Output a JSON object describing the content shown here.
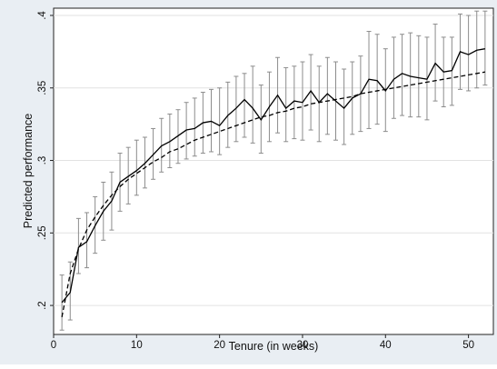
{
  "chart_data": {
    "type": "line",
    "xlabel": "Tenure (in weeks)",
    "ylabel": "Predicted performance",
    "xlim": [
      0,
      53
    ],
    "ylim": [
      0.18,
      0.405
    ],
    "x_ticks": [
      0,
      10,
      20,
      30,
      40,
      50
    ],
    "y_ticks": [
      0.2,
      0.25,
      0.3,
      0.35,
      0.4
    ],
    "x_tick_labels": [
      "0",
      "10",
      "20",
      "30",
      "40",
      "50"
    ],
    "y_tick_labels": [
      ".2",
      ".25",
      ".3",
      ".35",
      ".4"
    ],
    "grid": "horizontal",
    "legend": "none",
    "colors": {
      "outer_background": "#e9eef3",
      "plot_background": "#ffffff",
      "line": "#000000",
      "error_bars": "#8c8c8c",
      "grid": "#e2e2e2"
    },
    "series": [
      {
        "style": "solid line with 95% CI error bars",
        "x": [
          1,
          2,
          3,
          4,
          5,
          6,
          7,
          8,
          9,
          10,
          11,
          12,
          13,
          14,
          15,
          16,
          17,
          18,
          19,
          20,
          21,
          22,
          23,
          24,
          25,
          26,
          27,
          28,
          29,
          30,
          31,
          32,
          33,
          34,
          35,
          36,
          37,
          38,
          39,
          40,
          41,
          42,
          43,
          44,
          45,
          46,
          47,
          48,
          49,
          50,
          51,
          52
        ],
        "y": [
          0.202,
          0.209,
          0.24,
          0.244,
          0.255,
          0.265,
          0.272,
          0.285,
          0.289,
          0.293,
          0.298,
          0.304,
          0.31,
          0.313,
          0.317,
          0.321,
          0.322,
          0.326,
          0.327,
          0.324,
          0.331,
          0.336,
          0.342,
          0.336,
          0.328,
          0.337,
          0.345,
          0.336,
          0.341,
          0.34,
          0.348,
          0.34,
          0.346,
          0.341,
          0.336,
          0.343,
          0.346,
          0.356,
          0.355,
          0.348,
          0.356,
          0.36,
          0.358,
          0.357,
          0.356,
          0.367,
          0.361,
          0.362,
          0.375,
          0.373,
          0.376,
          0.377
        ],
        "lower": [
          0.183,
          0.19,
          0.222,
          0.226,
          0.236,
          0.245,
          0.252,
          0.265,
          0.27,
          0.276,
          0.281,
          0.287,
          0.292,
          0.295,
          0.298,
          0.301,
          0.303,
          0.305,
          0.306,
          0.304,
          0.309,
          0.313,
          0.316,
          0.312,
          0.305,
          0.313,
          0.319,
          0.313,
          0.315,
          0.314,
          0.321,
          0.313,
          0.318,
          0.314,
          0.311,
          0.318,
          0.32,
          0.322,
          0.325,
          0.32,
          0.329,
          0.331,
          0.33,
          0.33,
          0.328,
          0.341,
          0.337,
          0.338,
          0.349,
          0.348,
          0.35,
          0.352
        ],
        "upper": [
          0.221,
          0.23,
          0.26,
          0.264,
          0.275,
          0.285,
          0.292,
          0.305,
          0.309,
          0.314,
          0.316,
          0.322,
          0.329,
          0.332,
          0.335,
          0.34,
          0.343,
          0.347,
          0.349,
          0.35,
          0.354,
          0.358,
          0.36,
          0.365,
          0.352,
          0.361,
          0.371,
          0.364,
          0.365,
          0.368,
          0.373,
          0.365,
          0.371,
          0.368,
          0.363,
          0.368,
          0.372,
          0.389,
          0.387,
          0.377,
          0.385,
          0.387,
          0.388,
          0.386,
          0.385,
          0.394,
          0.385,
          0.385,
          0.401,
          0.4,
          0.403,
          0.403
        ]
      },
      {
        "style": "dashed fitted curve",
        "x": [
          1,
          2,
          3,
          4,
          5,
          6,
          7,
          8,
          9,
          10,
          11,
          12,
          13,
          14,
          15,
          16,
          17,
          18,
          19,
          20,
          21,
          22,
          23,
          24,
          25,
          26,
          27,
          28,
          29,
          30,
          31,
          32,
          33,
          34,
          35,
          36,
          37,
          38,
          39,
          40,
          41,
          42,
          43,
          44,
          45,
          46,
          47,
          48,
          49,
          50,
          51,
          52
        ],
        "y": [
          0.192,
          0.222,
          0.239,
          0.252,
          0.261,
          0.269,
          0.276,
          0.282,
          0.287,
          0.291,
          0.295,
          0.299,
          0.302,
          0.306,
          0.308,
          0.311,
          0.314,
          0.316,
          0.318,
          0.32,
          0.322,
          0.324,
          0.326,
          0.328,
          0.33,
          0.331,
          0.333,
          0.334,
          0.336,
          0.337,
          0.339,
          0.34,
          0.341,
          0.342,
          0.343,
          0.344,
          0.346,
          0.347,
          0.348,
          0.349,
          0.35,
          0.351,
          0.352,
          0.353,
          0.354,
          0.355,
          0.356,
          0.357,
          0.358,
          0.359,
          0.36,
          0.361
        ]
      }
    ]
  }
}
